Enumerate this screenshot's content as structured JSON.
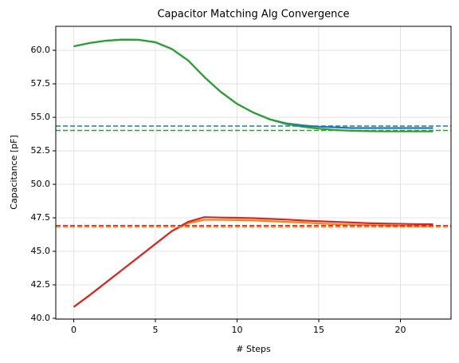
{
  "chart_data": {
    "type": "line",
    "title": "Capacitor Matching Alg Convergence",
    "x_label": "# Steps",
    "y_label": "Capacitance [pF]",
    "x": [
      0,
      1,
      2,
      3,
      4,
      5,
      6,
      7,
      8,
      9,
      10,
      11,
      12,
      13,
      14,
      15,
      16,
      17,
      18,
      19,
      20,
      21,
      22
    ],
    "series": [
      {
        "color": "#1f77b4",
        "values": [
          60.3,
          60.55,
          60.72,
          60.8,
          60.78,
          60.6,
          60.1,
          59.25,
          58.0,
          56.9,
          56.0,
          55.35,
          54.85,
          54.55,
          54.4,
          54.3,
          54.25,
          54.2,
          54.2,
          54.2,
          54.2,
          54.2,
          54.2
        ]
      },
      {
        "color": "#ff7f0e",
        "values": [
          40.85,
          41.75,
          42.7,
          43.65,
          44.6,
          45.55,
          46.5,
          47.1,
          47.35,
          47.35,
          47.33,
          47.3,
          47.25,
          47.2,
          47.15,
          47.08,
          47.02,
          46.98,
          46.95,
          46.92,
          46.9,
          46.88,
          46.87
        ]
      },
      {
        "color": "#2ca02c",
        "values": [
          60.3,
          60.55,
          60.72,
          60.8,
          60.78,
          60.6,
          60.1,
          59.25,
          58.0,
          56.9,
          56.0,
          55.35,
          54.85,
          54.5,
          54.3,
          54.15,
          54.05,
          54.0,
          53.97,
          53.95,
          53.95,
          53.95,
          53.95
        ]
      },
      {
        "color": "#d62728",
        "values": [
          40.85,
          41.75,
          42.7,
          43.65,
          44.6,
          45.55,
          46.5,
          47.2,
          47.55,
          47.52,
          47.5,
          47.47,
          47.42,
          47.37,
          47.3,
          47.25,
          47.2,
          47.15,
          47.1,
          47.07,
          47.05,
          47.03,
          47.02
        ]
      }
    ],
    "hlines": [
      {
        "value": 54.35,
        "color": "#1f77b4"
      },
      {
        "value": 46.82,
        "color": "#ff7f0e"
      },
      {
        "value": 54.02,
        "color": "#2ca02c"
      },
      {
        "value": 46.92,
        "color": "#d62728"
      }
    ],
    "xlim": [
      -1.1,
      23.1
    ],
    "xticks": [
      0,
      5,
      10,
      15,
      20
    ],
    "ylim": [
      39.94,
      61.79
    ],
    "yticks": [
      {
        "value": 40,
        "label": "40.0"
      },
      42.5,
      {
        "value": 45,
        "label": "45.0"
      },
      47.5,
      {
        "value": 50,
        "label": "50.0"
      },
      52.5,
      {
        "value": 55,
        "label": "55.0"
      },
      57.5,
      {
        "value": 60,
        "label": "60.0"
      }
    ],
    "grid": true
  }
}
